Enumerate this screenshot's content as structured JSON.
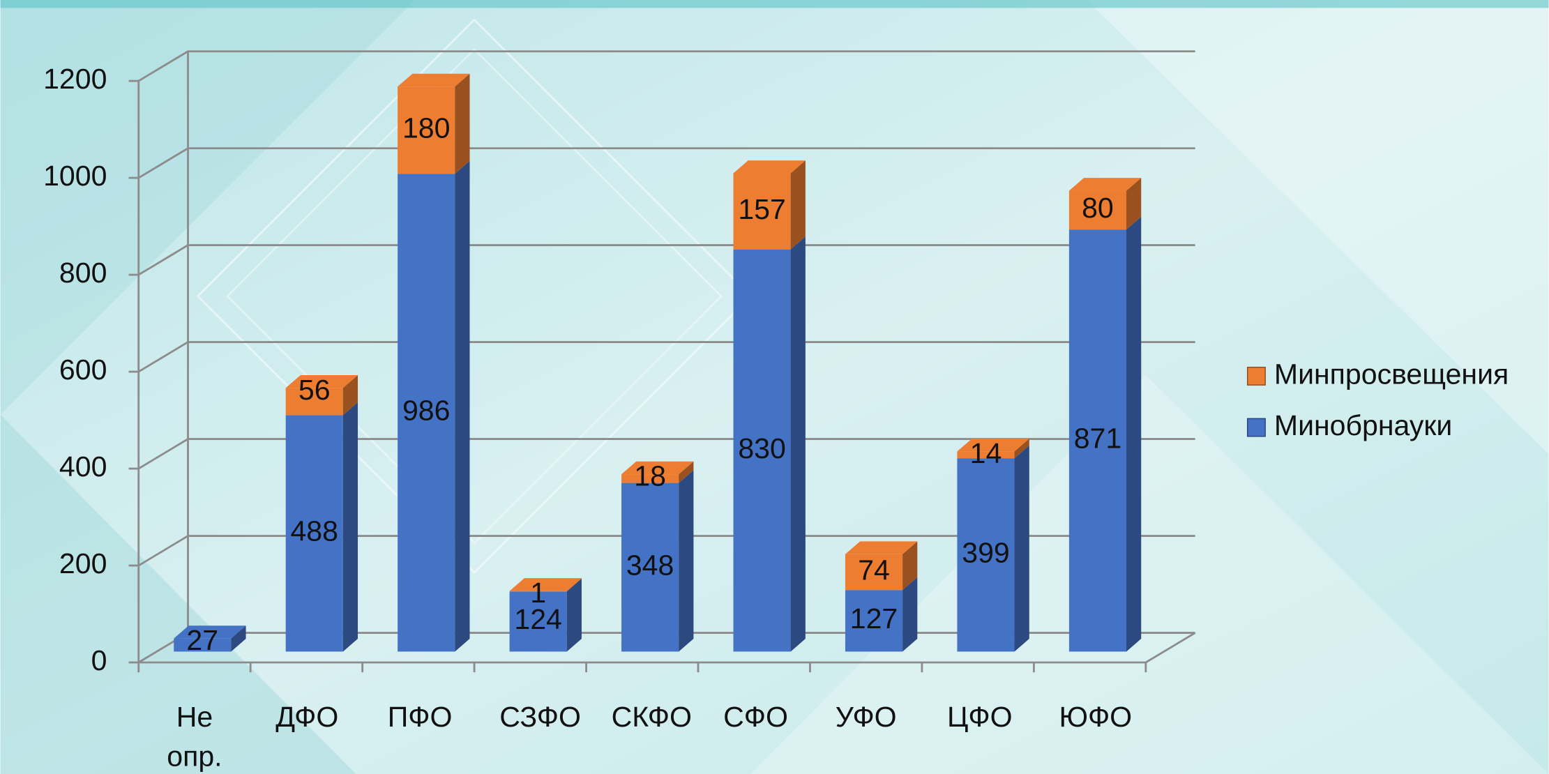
{
  "chart_data": {
    "type": "bar3d_stacked",
    "categories": [
      "Не опр.",
      "ДФО",
      "ПФО",
      "СЗФО",
      "СКФО",
      "СФО",
      "УФО",
      "ЦФО",
      "ЮФО"
    ],
    "series": [
      {
        "name": "Минобрнауки",
        "color": "#4472c4",
        "values": [
          27,
          488,
          986,
          124,
          348,
          830,
          127,
          399,
          871
        ]
      },
      {
        "name": "Минпросвещения",
        "color": "#ed7d31",
        "values": [
          null,
          56,
          180,
          1,
          18,
          157,
          74,
          14,
          80
        ]
      }
    ],
    "ylim": [
      0,
      1200
    ],
    "yticks": [
      0,
      200,
      400,
      600,
      800,
      1000,
      1200
    ],
    "grid": true,
    "legend": "right"
  }
}
